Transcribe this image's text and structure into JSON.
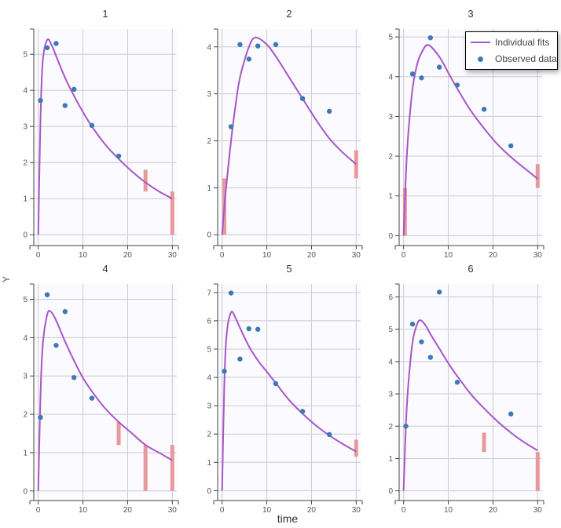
{
  "chart_data": {
    "type": "line",
    "xlabel": "time",
    "ylabel": "Y",
    "grid": true,
    "legend": {
      "placement": "top-right",
      "entries": [
        {
          "label": "Individual fits",
          "kind": "line",
          "color": "#a855c8"
        },
        {
          "label": "Observed data",
          "kind": "point",
          "color": "#3d7ab5"
        }
      ]
    },
    "colors": {
      "fit": "#a855c8",
      "observed": "#3d7ab5",
      "blq": "#e8999c",
      "panel_bg": "#fafaff",
      "grid": "#cccccc"
    },
    "xlim": [
      -1,
      31
    ],
    "xticks": [
      0,
      10,
      20,
      30
    ],
    "panels": [
      {
        "title": "1",
        "ylim": [
          -0.3,
          5.7
        ],
        "yticks": [
          0,
          1,
          2,
          3,
          4,
          5
        ],
        "observed": [
          [
            0.5,
            3.72
          ],
          [
            2,
            5.18
          ],
          [
            4,
            5.3
          ],
          [
            6,
            3.58
          ],
          [
            8,
            4.03
          ],
          [
            12,
            3.03
          ],
          [
            18,
            2.18
          ]
        ],
        "blq": [
          [
            24,
            1.2,
            1.8
          ],
          [
            30,
            0,
            1.2
          ]
        ],
        "fit": [
          [
            0,
            0
          ],
          [
            0.5,
            3.2
          ],
          [
            1,
            4.8
          ],
          [
            2,
            5.4
          ],
          [
            3,
            5.25
          ],
          [
            4,
            4.95
          ],
          [
            6,
            4.35
          ],
          [
            8,
            3.85
          ],
          [
            10,
            3.4
          ],
          [
            12,
            3.0
          ],
          [
            15,
            2.5
          ],
          [
            18,
            2.1
          ],
          [
            21,
            1.75
          ],
          [
            24,
            1.45
          ],
          [
            27,
            1.2
          ],
          [
            30,
            1.0
          ]
        ]
      },
      {
        "title": "2",
        "ylim": [
          -0.23,
          4.38
        ],
        "yticks": [
          0,
          1,
          2,
          3,
          4
        ],
        "observed": [
          [
            2,
            2.3
          ],
          [
            4,
            4.05
          ],
          [
            6,
            3.74
          ],
          [
            8,
            4.02
          ],
          [
            12,
            4.05
          ],
          [
            18,
            2.9
          ],
          [
            24,
            2.63
          ]
        ],
        "blq": [
          [
            0.5,
            0,
            1.2
          ],
          [
            30,
            1.2,
            1.8
          ]
        ],
        "fit": [
          [
            0,
            0
          ],
          [
            0.5,
            0.6
          ],
          [
            1,
            1.1
          ],
          [
            2,
            2.0
          ],
          [
            3,
            2.75
          ],
          [
            4,
            3.35
          ],
          [
            6,
            4.0
          ],
          [
            7.5,
            4.2
          ],
          [
            10,
            4.05
          ],
          [
            12,
            3.8
          ],
          [
            15,
            3.35
          ],
          [
            18,
            2.9
          ],
          [
            21,
            2.45
          ],
          [
            24,
            2.05
          ],
          [
            27,
            1.75
          ],
          [
            30,
            1.5
          ]
        ]
      },
      {
        "title": "3",
        "ylim": [
          -0.25,
          5.2
        ],
        "yticks": [
          0,
          1,
          2,
          3,
          4,
          5
        ],
        "observed": [
          [
            2,
            4.07
          ],
          [
            4,
            3.97
          ],
          [
            6,
            4.98
          ],
          [
            8,
            4.24
          ],
          [
            12,
            3.79
          ],
          [
            18,
            3.18
          ],
          [
            24,
            2.26
          ]
        ],
        "blq": [
          [
            0.3,
            0,
            1.2
          ],
          [
            30,
            1.2,
            1.8
          ]
        ],
        "fit": [
          [
            0,
            0
          ],
          [
            0.5,
            1.5
          ],
          [
            1,
            2.5
          ],
          [
            2,
            3.7
          ],
          [
            3,
            4.3
          ],
          [
            4,
            4.6
          ],
          [
            5.5,
            4.8
          ],
          [
            8,
            4.5
          ],
          [
            10,
            4.1
          ],
          [
            12,
            3.7
          ],
          [
            15,
            3.15
          ],
          [
            18,
            2.7
          ],
          [
            21,
            2.3
          ],
          [
            24,
            1.98
          ],
          [
            27,
            1.7
          ],
          [
            30,
            1.43
          ]
        ]
      },
      {
        "title": "4",
        "ylim": [
          -0.25,
          5.4
        ],
        "yticks": [
          0,
          1,
          2,
          3,
          4,
          5
        ],
        "observed": [
          [
            0.5,
            1.92
          ],
          [
            2,
            5.12
          ],
          [
            4,
            3.8
          ],
          [
            6,
            4.68
          ],
          [
            8,
            2.96
          ],
          [
            12,
            2.42
          ]
        ],
        "blq": [
          [
            18,
            1.2,
            1.8
          ],
          [
            24,
            0,
            1.2
          ],
          [
            30,
            0,
            1.2
          ]
        ],
        "fit": [
          [
            0,
            0
          ],
          [
            0.5,
            2.5
          ],
          [
            1,
            3.8
          ],
          [
            2,
            4.6
          ],
          [
            2.8,
            4.68
          ],
          [
            4,
            4.45
          ],
          [
            6,
            3.9
          ],
          [
            8,
            3.4
          ],
          [
            10,
            2.95
          ],
          [
            12,
            2.6
          ],
          [
            15,
            2.15
          ],
          [
            18,
            1.8
          ],
          [
            21,
            1.5
          ],
          [
            24,
            1.2
          ],
          [
            27,
            1.0
          ],
          [
            30,
            0.8
          ]
        ]
      },
      {
        "title": "5",
        "ylim": [
          -0.35,
          7.3
        ],
        "yticks": [
          0,
          1,
          2,
          3,
          4,
          5,
          6,
          7
        ],
        "observed": [
          [
            0.5,
            4.22
          ],
          [
            2,
            6.98
          ],
          [
            4,
            4.65
          ],
          [
            6,
            5.72
          ],
          [
            8,
            5.7
          ],
          [
            12,
            3.78
          ],
          [
            18,
            2.8
          ],
          [
            24,
            1.98
          ]
        ],
        "blq": [
          [
            30,
            1.2,
            1.8
          ]
        ],
        "fit": [
          [
            0,
            0
          ],
          [
            0.5,
            3.8
          ],
          [
            1,
            5.5
          ],
          [
            2,
            6.3
          ],
          [
            3,
            6.1
          ],
          [
            4,
            5.75
          ],
          [
            6,
            5.1
          ],
          [
            8,
            4.6
          ],
          [
            10,
            4.2
          ],
          [
            12,
            3.8
          ],
          [
            15,
            3.2
          ],
          [
            18,
            2.72
          ],
          [
            21,
            2.3
          ],
          [
            24,
            1.95
          ],
          [
            27,
            1.65
          ],
          [
            30,
            1.38
          ]
        ]
      },
      {
        "title": "6",
        "ylim": [
          -0.3,
          6.4
        ],
        "yticks": [
          0,
          1,
          2,
          3,
          4,
          5,
          6
        ],
        "observed": [
          [
            0.5,
            2.0
          ],
          [
            2,
            5.16
          ],
          [
            4,
            4.61
          ],
          [
            6,
            4.13
          ],
          [
            8,
            6.15
          ],
          [
            12,
            3.36
          ],
          [
            24,
            2.38
          ]
        ],
        "blq": [
          [
            18,
            1.2,
            1.8
          ],
          [
            30,
            0,
            1.2
          ]
        ],
        "fit": [
          [
            0,
            0
          ],
          [
            0.5,
            2.0
          ],
          [
            1,
            3.2
          ],
          [
            2,
            4.6
          ],
          [
            3,
            5.15
          ],
          [
            3.8,
            5.28
          ],
          [
            5,
            5.1
          ],
          [
            6,
            4.85
          ],
          [
            8,
            4.4
          ],
          [
            10,
            3.95
          ],
          [
            12,
            3.55
          ],
          [
            15,
            3.0
          ],
          [
            18,
            2.55
          ],
          [
            21,
            2.15
          ],
          [
            24,
            1.8
          ],
          [
            27,
            1.5
          ],
          [
            30,
            1.25
          ]
        ]
      }
    ]
  }
}
